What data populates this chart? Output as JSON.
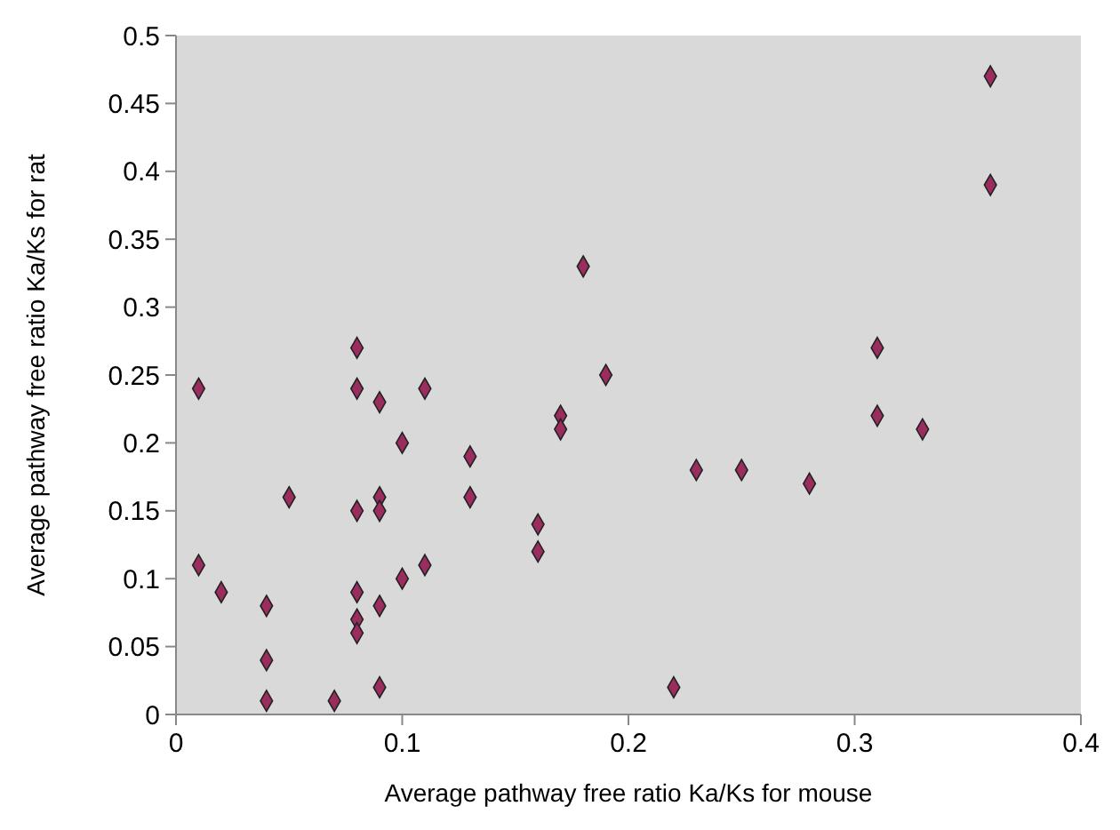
{
  "chart_data": {
    "type": "scatter",
    "xlabel": "Average pathway free ratio Ka/Ks for mouse",
    "ylabel": "Average pathway free ratio Ka/Ks for rat",
    "marker": "diamond",
    "grid": false,
    "xlim": [
      0,
      0.4
    ],
    "ylim": [
      0,
      0.5
    ],
    "xticks": [
      0,
      0.1,
      0.2,
      0.3,
      0.4
    ],
    "yticks": [
      0,
      0.05,
      0.1,
      0.15,
      0.2,
      0.25,
      0.3,
      0.35,
      0.4,
      0.45,
      0.5
    ],
    "series": [
      {
        "color": "#9b2c5e",
        "x": [
          0.01,
          0.01,
          0.02,
          0.04,
          0.04,
          0.04,
          0.05,
          0.07,
          0.08,
          0.08,
          0.08,
          0.08,
          0.08,
          0.08,
          0.09,
          0.09,
          0.09,
          0.09,
          0.09,
          0.1,
          0.1,
          0.11,
          0.11,
          0.13,
          0.13,
          0.16,
          0.16,
          0.17,
          0.17,
          0.18,
          0.19,
          0.22,
          0.23,
          0.25,
          0.28,
          0.31,
          0.31,
          0.33,
          0.36,
          0.36
        ],
        "values": [
          0.24,
          0.11,
          0.09,
          0.08,
          0.04,
          0.01,
          0.16,
          0.01,
          0.27,
          0.24,
          0.15,
          0.09,
          0.07,
          0.06,
          0.23,
          0.16,
          0.15,
          0.08,
          0.02,
          0.2,
          0.1,
          0.24,
          0.11,
          0.19,
          0.16,
          0.14,
          0.12,
          0.22,
          0.21,
          0.33,
          0.25,
          0.02,
          0.18,
          0.18,
          0.17,
          0.27,
          0.22,
          0.21,
          0.47,
          0.39
        ]
      }
    ]
  }
}
